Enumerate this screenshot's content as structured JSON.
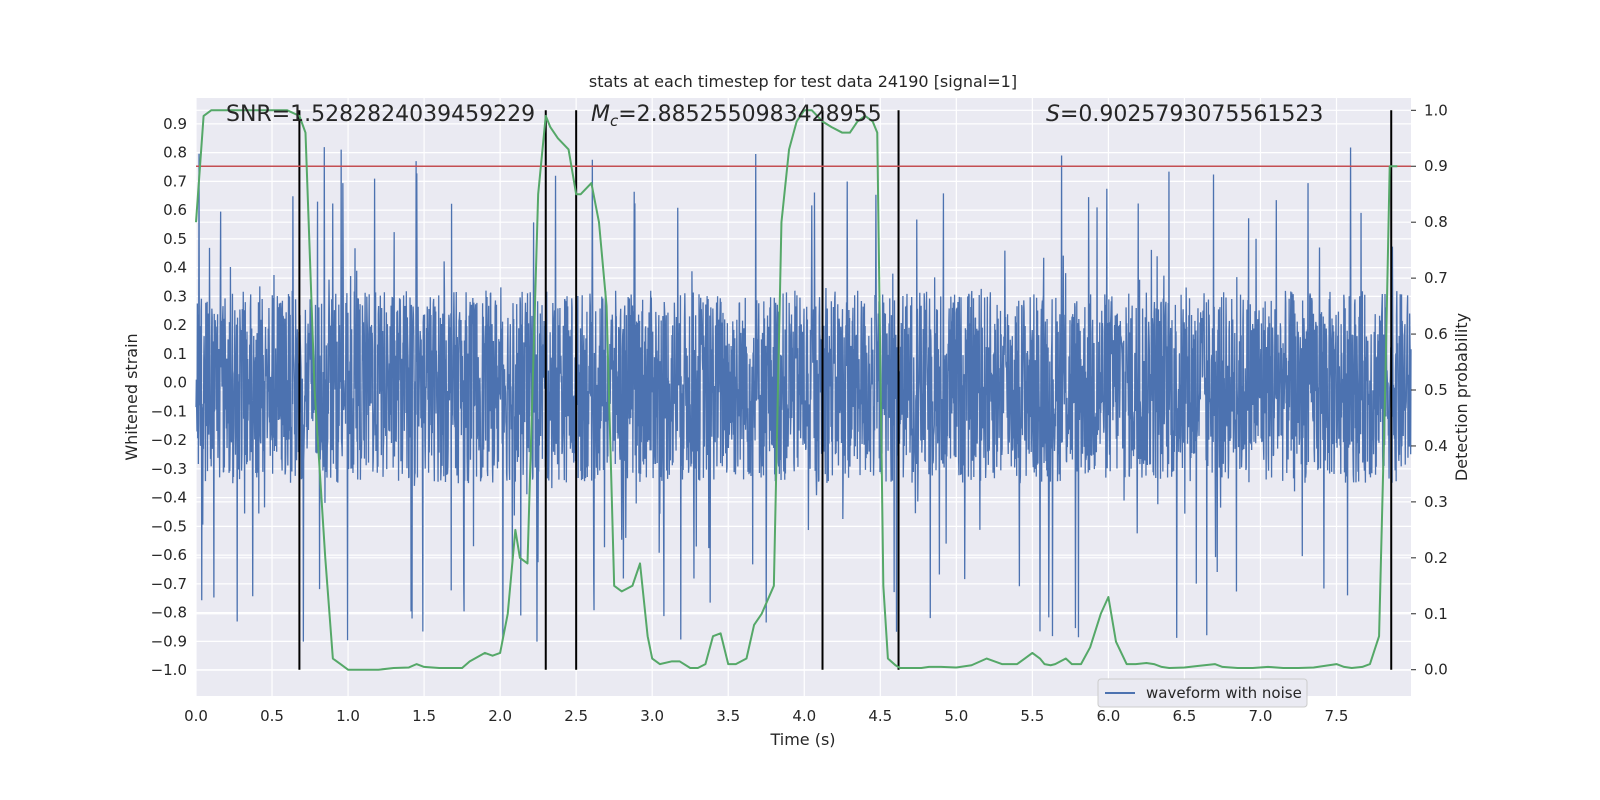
{
  "chart_data": {
    "type": "line",
    "title": "stats at each timestep for test data 24190 [signal=1]",
    "xlabel": "Time (s)",
    "ylabel": "Whitened strain",
    "y2label": "Detection probability",
    "xlim": [
      0.0,
      7.99
    ],
    "ylim": [
      -1.09,
      0.99
    ],
    "y2lim": [
      -0.047,
      1.022
    ],
    "grid": true,
    "x_ticks": [
      0.0,
      0.5,
      1.0,
      1.5,
      2.0,
      2.5,
      3.0,
      3.5,
      4.0,
      4.5,
      5.0,
      5.5,
      6.0,
      6.5,
      7.0,
      7.5
    ],
    "x_tick_labels": [
      "0.0",
      "0.5",
      "1.0",
      "1.5",
      "2.0",
      "2.5",
      "3.0",
      "3.5",
      "4.0",
      "4.5",
      "5.0",
      "5.5",
      "6.0",
      "6.5",
      "7.0",
      "7.5"
    ],
    "y_ticks": [
      0.9,
      0.8,
      0.7,
      0.6,
      0.5,
      0.4,
      0.3,
      0.2,
      0.1,
      0.0,
      -0.1,
      -0.2,
      -0.3,
      -0.4,
      -0.5,
      -0.6,
      -0.7,
      -0.8,
      -0.9,
      -1.0
    ],
    "y_tick_labels": [
      "0.9",
      "0.8",
      "0.7",
      "0.6",
      "0.5",
      "0.4",
      "0.3",
      "0.2",
      "0.1",
      "0.0",
      "−0.1",
      "−0.2",
      "−0.3",
      "−0.4",
      "−0.5",
      "−0.6",
      "−0.7",
      "−0.8",
      "−0.9",
      "−1.0"
    ],
    "y2_ticks": [
      1.0,
      0.9,
      0.8,
      0.7,
      0.6,
      0.5,
      0.4,
      0.3,
      0.2,
      0.1,
      0.0
    ],
    "y2_tick_labels": [
      "1.0",
      "0.9",
      "0.8",
      "0.7",
      "0.6",
      "0.5",
      "0.4",
      "0.3",
      "0.2",
      "0.1",
      "0.0"
    ],
    "waveform": {
      "name": "waveform with noise",
      "color": "#4c72b0",
      "duration_s": 7.99,
      "typical_range": [
        -0.35,
        0.32
      ],
      "peak_range": [
        -1.0,
        0.88
      ]
    },
    "threshold": {
      "value": 0.9,
      "axis": "right",
      "color": "#c44e52"
    },
    "detection_probability": {
      "color": "#55a868",
      "x": [
        0.0,
        0.05,
        0.1,
        0.2,
        0.3,
        0.4,
        0.5,
        0.6,
        0.68,
        0.72,
        0.78,
        0.85,
        0.9,
        0.95,
        1.0,
        1.1,
        1.2,
        1.3,
        1.4,
        1.45,
        1.5,
        1.6,
        1.7,
        1.75,
        1.8,
        1.9,
        1.95,
        2.0,
        2.05,
        2.1,
        2.13,
        2.18,
        2.25,
        2.3,
        2.33,
        2.38,
        2.45,
        2.5,
        2.53,
        2.6,
        2.65,
        2.7,
        2.75,
        2.8,
        2.87,
        2.92,
        2.97,
        3.0,
        3.05,
        3.13,
        3.18,
        3.25,
        3.3,
        3.35,
        3.4,
        3.45,
        3.5,
        3.55,
        3.62,
        3.67,
        3.72,
        3.8,
        3.85,
        3.9,
        3.95,
        4.0,
        4.05,
        4.12,
        4.18,
        4.25,
        4.3,
        4.35,
        4.4,
        4.45,
        4.48,
        4.52,
        4.55,
        4.6,
        4.63,
        4.66,
        4.7,
        4.77,
        4.82,
        4.9,
        5.0,
        5.1,
        5.2,
        5.3,
        5.4,
        5.45,
        5.5,
        5.55,
        5.58,
        5.62,
        5.65,
        5.72,
        5.76,
        5.82,
        5.88,
        5.95,
        6.0,
        6.05,
        6.12,
        6.18,
        6.25,
        6.3,
        6.35,
        6.4,
        6.5,
        6.6,
        6.7,
        6.75,
        6.85,
        6.95,
        7.05,
        7.15,
        7.25,
        7.35,
        7.45,
        7.5,
        7.55,
        7.6,
        7.67,
        7.72,
        7.78,
        7.82,
        7.85,
        7.88,
        7.9
      ],
      "y": [
        0.8,
        0.99,
        1.0,
        1.0,
        1.0,
        1.0,
        1.0,
        1.0,
        0.99,
        0.96,
        0.5,
        0.2,
        0.02,
        0.01,
        0.0,
        0.0,
        0.0,
        0.003,
        0.004,
        0.01,
        0.005,
        0.003,
        0.003,
        0.003,
        0.015,
        0.03,
        0.025,
        0.03,
        0.1,
        0.25,
        0.2,
        0.19,
        0.85,
        0.99,
        0.97,
        0.95,
        0.93,
        0.85,
        0.85,
        0.87,
        0.8,
        0.65,
        0.15,
        0.14,
        0.15,
        0.19,
        0.06,
        0.02,
        0.01,
        0.015,
        0.015,
        0.003,
        0.003,
        0.01,
        0.06,
        0.065,
        0.01,
        0.01,
        0.02,
        0.08,
        0.1,
        0.15,
        0.8,
        0.93,
        0.98,
        1.0,
        1.0,
        0.98,
        0.97,
        0.96,
        0.96,
        0.98,
        0.99,
        0.98,
        0.96,
        0.15,
        0.02,
        0.008,
        0.003,
        0.003,
        0.003,
        0.003,
        0.005,
        0.005,
        0.004,
        0.008,
        0.02,
        0.01,
        0.01,
        0.02,
        0.03,
        0.02,
        0.01,
        0.008,
        0.01,
        0.02,
        0.01,
        0.01,
        0.04,
        0.1,
        0.13,
        0.05,
        0.01,
        0.01,
        0.012,
        0.01,
        0.005,
        0.003,
        0.004,
        0.007,
        0.01,
        0.005,
        0.003,
        0.003,
        0.005,
        0.003,
        0.003,
        0.004,
        0.008,
        0.01,
        0.005,
        0.003,
        0.005,
        0.01,
        0.06,
        0.5,
        0.9,
        0.9,
        0.9
      ]
    },
    "boundaries_s": [
      0.68,
      2.3,
      2.5,
      4.12,
      4.62,
      7.86
    ],
    "annotations": [
      {
        "x": 0.2,
        "text": "SNR=1.5282824039459229"
      },
      {
        "x": 2.6,
        "prefix": "M",
        "sub": "c",
        "text": "=2.8852550983428955"
      },
      {
        "x": 5.6,
        "prefix": "S",
        "text": "=0.9025793075561523"
      }
    ],
    "legend": {
      "position": "lower-right"
    }
  }
}
